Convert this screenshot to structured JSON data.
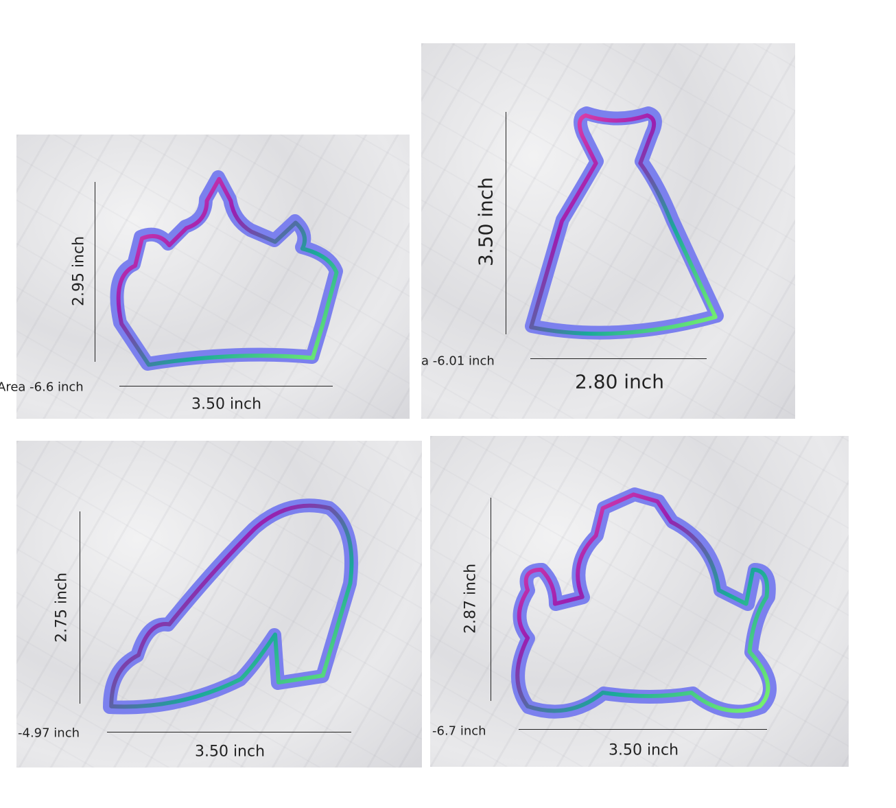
{
  "panels": [
    {
      "shape": "crown",
      "height_label": "2.95 inch",
      "width_label": "3.50 inch",
      "area_label": "Area -6.6 inch"
    },
    {
      "shape": "dress",
      "height_label": "3.50 inch",
      "width_label": "2.80 inch",
      "area_label": "a -6.01 inch"
    },
    {
      "shape": "shoe",
      "height_label": "2.75 inch",
      "width_label": "3.50 inch",
      "area_label": "-4.97 inch"
    },
    {
      "shape": "carriage",
      "height_label": "2.87 inch",
      "width_label": "3.50 inch",
      "area_label": "-6.7 inch"
    }
  ]
}
